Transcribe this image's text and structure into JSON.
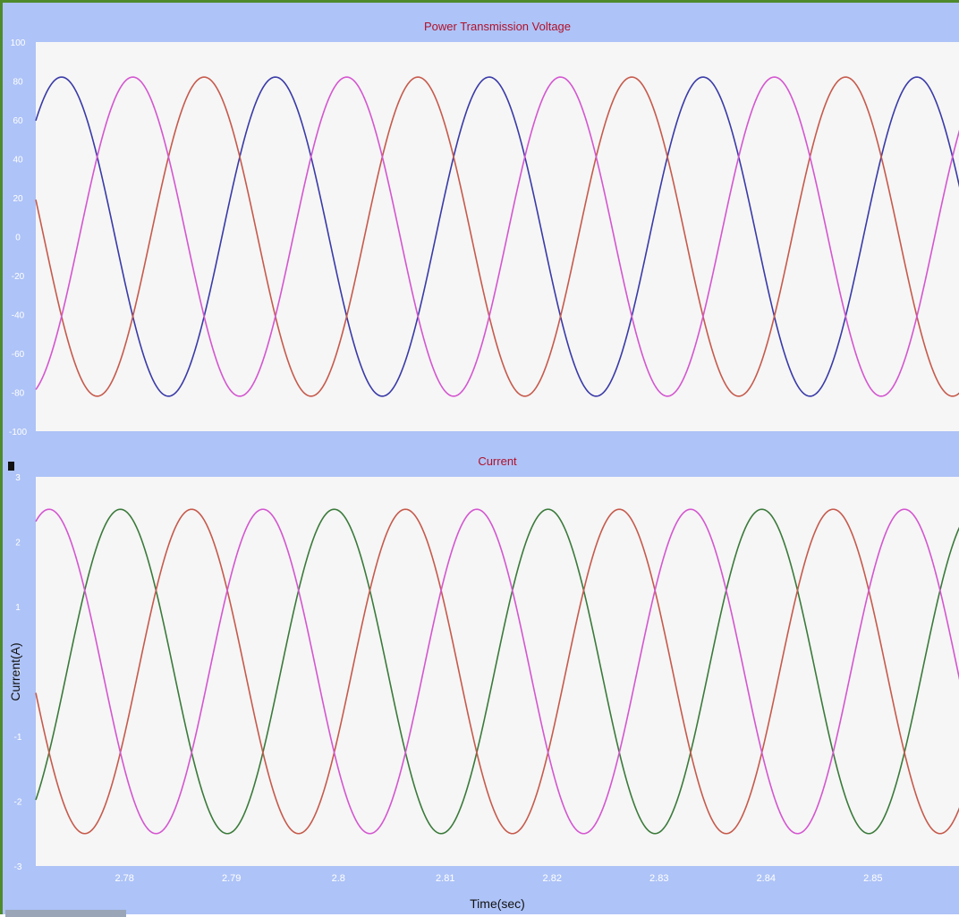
{
  "chart_data": [
    {
      "type": "line",
      "title": "Power Transmission Voltage",
      "ylabel": "",
      "xlabel": "",
      "xlim": [
        2.7717,
        2.8583
      ],
      "ylim": [
        -100,
        100
      ],
      "yticks": [
        100,
        80,
        60,
        40,
        20,
        0,
        -20,
        -40,
        -60,
        -80,
        -100
      ],
      "grid": false,
      "amplitude": 82,
      "frequency_hz": 50,
      "series": [
        {
          "color": "#3a3aa8",
          "phase_deg": 196
        },
        {
          "color": "#c65a4c",
          "phase_deg": 316
        },
        {
          "color": "#d456d0",
          "phase_deg": 76
        }
      ]
    },
    {
      "type": "line",
      "title": "Current",
      "ylabel": "Current(A)",
      "xlabel": "Time(sec)",
      "xlim": [
        2.7717,
        2.8583
      ],
      "ylim": [
        -3,
        3
      ],
      "yticks": [
        3,
        2,
        1,
        0,
        -1,
        -2,
        -3
      ],
      "xticks": [
        2.78,
        2.79,
        2.8,
        2.81,
        2.82,
        2.83,
        2.84,
        2.85
      ],
      "xtick_labels": [
        "2.78",
        "2.79",
        "2.8",
        "2.81",
        "2.82",
        "2.83",
        "2.84",
        "2.85"
      ],
      "grid": false,
      "amplitude": 2.5,
      "frequency_hz": 50,
      "series": [
        {
          "color": "#3b7a3b",
          "phase_deg": 97
        },
        {
          "color": "#c65a4c",
          "phase_deg": 337
        },
        {
          "color": "#d456d0",
          "phase_deg": 217
        }
      ]
    }
  ]
}
